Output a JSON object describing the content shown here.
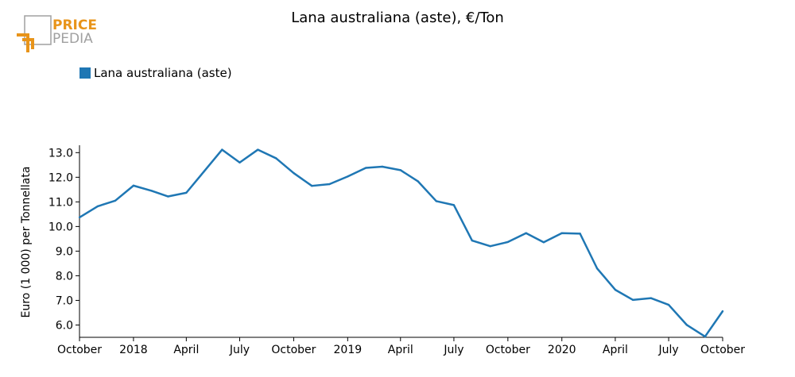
{
  "header": {
    "logo_top": "PRICE",
    "logo_bottom": "PEDIA"
  },
  "colors": {
    "series": "#1f77b4",
    "logo_orange": "#e8941a",
    "logo_gray": "#a0a0a0"
  },
  "chart_data": {
    "type": "line",
    "title": "Lana australiana (aste), €/Ton",
    "ylabel": "Euro (1 000) per Tonnellata",
    "xlabel": "",
    "ylim": [
      5.5,
      13.3
    ],
    "yticks": [
      6.0,
      7.0,
      8.0,
      9.0,
      10.0,
      11.0,
      12.0,
      13.0
    ],
    "ytick_labels": [
      "6.0",
      "7.0",
      "8.0",
      "9.0",
      "10.0",
      "11.0",
      "12.0",
      "13.0"
    ],
    "xlim": [
      "2017-10-01",
      "2020-10-01"
    ],
    "xticks": [
      "2017-10-01",
      "2018-01-01",
      "2018-04-01",
      "2018-07-01",
      "2018-10-01",
      "2019-01-01",
      "2019-04-01",
      "2019-07-01",
      "2019-10-01",
      "2020-01-01",
      "2020-04-01",
      "2020-07-01",
      "2020-10-01"
    ],
    "xtick_labels": [
      "October",
      "2018",
      "April",
      "July",
      "October",
      "2019",
      "April",
      "July",
      "October",
      "2020",
      "April",
      "July",
      "October"
    ],
    "legend": "top-left",
    "grid": false,
    "series": [
      {
        "name": "Lana australiana (aste)",
        "x": [
          "2017-10-01",
          "2017-11-01",
          "2017-12-01",
          "2018-01-01",
          "2018-02-01",
          "2018-03-01",
          "2018-04-01",
          "2018-05-01",
          "2018-06-01",
          "2018-07-01",
          "2018-08-01",
          "2018-09-01",
          "2018-10-01",
          "2018-11-01",
          "2018-12-01",
          "2019-01-01",
          "2019-02-01",
          "2019-03-01",
          "2019-04-01",
          "2019-05-01",
          "2019-06-01",
          "2019-07-01",
          "2019-08-01",
          "2019-09-01",
          "2019-10-01",
          "2019-11-01",
          "2019-12-01",
          "2020-01-01",
          "2020-02-01",
          "2020-03-01",
          "2020-04-01",
          "2020-05-01",
          "2020-06-01",
          "2020-07-01",
          "2020-08-01",
          "2020-09-01",
          "2020-10-01"
        ],
        "values": [
          10.37,
          10.82,
          11.05,
          11.66,
          11.45,
          11.22,
          11.37,
          12.23,
          13.12,
          12.6,
          13.12,
          12.77,
          12.17,
          11.65,
          11.72,
          12.03,
          12.38,
          12.43,
          12.29,
          11.83,
          11.03,
          10.87,
          9.43,
          9.2,
          9.37,
          9.73,
          9.36,
          9.73,
          9.71,
          8.3,
          7.43,
          7.02,
          7.09,
          6.82,
          6.0,
          5.53,
          6.56
        ]
      }
    ]
  }
}
